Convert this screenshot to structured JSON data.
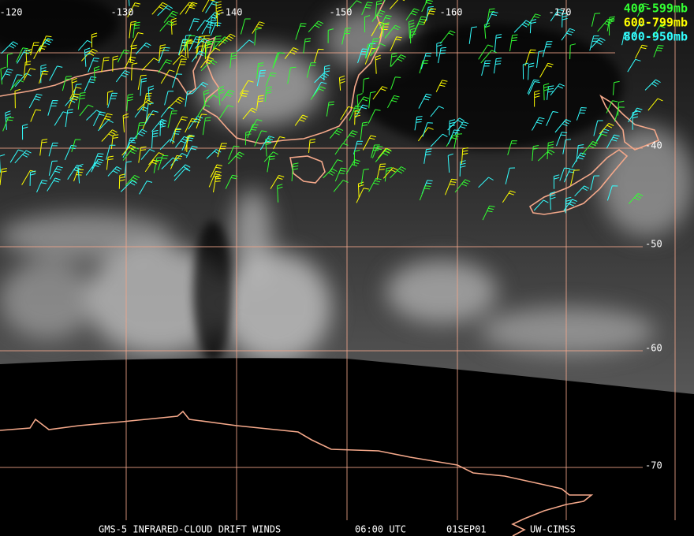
{
  "longitude_labels": [
    "-120",
    "-130",
    "-140",
    "-150",
    "-160",
    "-170"
  ],
  "latitude_labels": [
    "-40",
    "-50",
    "-60",
    "-70"
  ],
  "legend": [
    {
      "label": "400-599mb",
      "color": "#33ff33"
    },
    {
      "label": "600-799mb",
      "color": "#ffff00"
    },
    {
      "label": "800-950mb",
      "color": "#33ffff"
    }
  ],
  "footer": {
    "product": "GMS-5 INFRARED-CLOUD DRIFT WINDS",
    "time": "06:00 UTC",
    "date": "01SEP01",
    "source": "UW-CIMSS"
  }
}
